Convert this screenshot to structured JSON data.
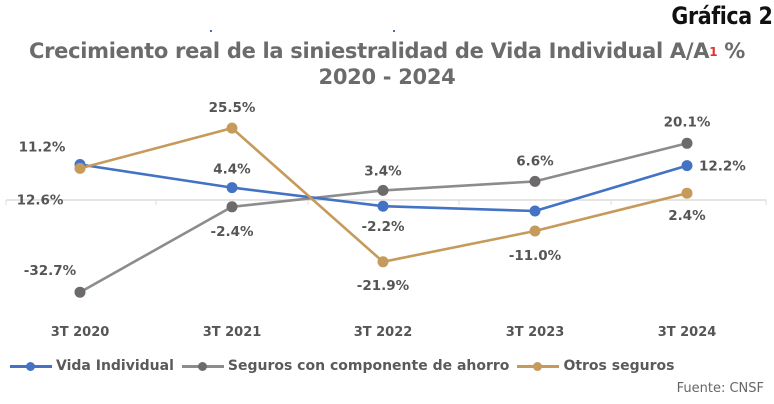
{
  "badge": "Gráfica 2",
  "source": "Fuente: CNSF",
  "chart_data": {
    "type": "line",
    "title": "Crecimiento real de la siniestralidad de Vida Individual A/A",
    "title_superscript": "1",
    "title_suffix": "%",
    "subtitle": "2020 - 2024",
    "xlabel": "",
    "ylabel": "",
    "categories": [
      "3T 2020",
      "3T 2021",
      "3T 2022",
      "3T 2023",
      "3T 2024"
    ],
    "ylim": [
      -35,
      30
    ],
    "grid": false,
    "zero_line": true,
    "legend_position": "bottom-left",
    "series": [
      {
        "name": "Vida Individual",
        "color": "#4472c4",
        "values": [
          12.6,
          4.4,
          -2.2,
          -3.9,
          12.2
        ],
        "labels": [
          "12.6%",
          "4.4%",
          "-2.2%",
          "",
          "12.2%"
        ]
      },
      {
        "name": "Seguros con componente de ahorro",
        "color": "#7f7f7f",
        "values": [
          -32.7,
          -2.4,
          3.4,
          6.6,
          20.1
        ],
        "labels": [
          "-32.7%",
          "-2.4%",
          "3.4%",
          "6.6%",
          "20.1%"
        ]
      },
      {
        "name": "Otros seguros",
        "color": "#c59a5a",
        "values": [
          11.2,
          25.5,
          -21.9,
          -11.0,
          2.4
        ],
        "labels": [
          "11.2%",
          "25.5%",
          "-21.9%",
          "-11.0%",
          "2.4%"
        ]
      }
    ]
  }
}
